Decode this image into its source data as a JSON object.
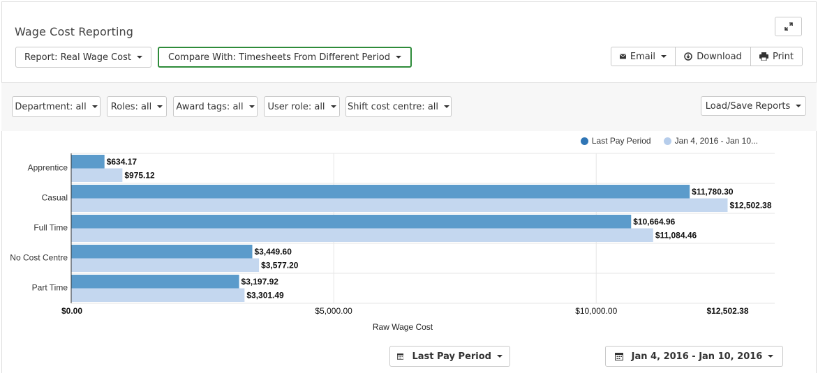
{
  "header": {
    "title": "Wage Cost Reporting",
    "report_label": "Report: Real Wage Cost",
    "compare_label": "Compare With: Timesheets From Different Period",
    "email_label": "Email",
    "download_label": "Download",
    "print_label": "Print"
  },
  "filters": [
    {
      "label": "Department: all"
    },
    {
      "label": "Roles: all"
    },
    {
      "label": "Award tags: all"
    },
    {
      "label": "User role: all"
    },
    {
      "label": "Shift cost centre: all"
    }
  ],
  "load_save_label": "Load/Save Reports",
  "footer": {
    "period_label": "Last Pay Period",
    "range_label": "Jan 4, 2016 - Jan 10, 2016"
  },
  "colors": {
    "series1": "#5b9bcb",
    "series2": "#c4d7ef",
    "legend1": "#2f75b5",
    "green_border": "#2e8b3a"
  },
  "chart_data": {
    "type": "bar",
    "orientation": "horizontal",
    "categories": [
      "Apprentice",
      "Casual",
      "Full Time",
      "No Cost Centre",
      "Part Time"
    ],
    "series": [
      {
        "name": "Last Pay Period",
        "values": [
          634.17,
          11780.3,
          10664.96,
          3449.6,
          3197.92
        ],
        "labels": [
          "$634.17",
          "$11,780.30",
          "$10,664.96",
          "$3,449.60",
          "$3,197.92"
        ]
      },
      {
        "name": "Jan 4, 2016 - Jan 10...",
        "values": [
          975.12,
          12502.38,
          11084.46,
          3577.2,
          3301.49
        ],
        "labels": [
          "$975.12",
          "$12,502.38",
          "$11,084.46",
          "$3,577.20",
          "$3,301.49"
        ]
      }
    ],
    "x_ticks": [
      {
        "value": 0,
        "label": "$0.00",
        "bold": true
      },
      {
        "value": 5000,
        "label": "$5,000.00",
        "bold": false
      },
      {
        "value": 10000,
        "label": "$10,000.00",
        "bold": false
      },
      {
        "value": 12502.38,
        "label": "$12,502.38",
        "bold": true
      }
    ],
    "xlabel": "Raw Wage Cost",
    "xlim": [
      0,
      13400
    ],
    "grid": true,
    "legend_position": "top-right"
  }
}
